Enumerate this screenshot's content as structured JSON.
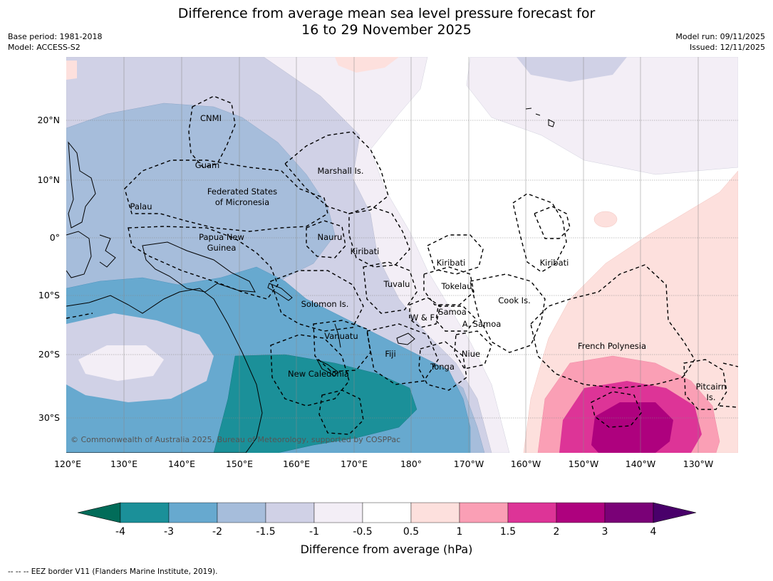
{
  "title_line1": "Difference from average mean sea level pressure forecast for",
  "title_line2": "16 to 29 November 2025",
  "meta_left": [
    "Base period: 1981-2018",
    "Model: ACCESS-S2"
  ],
  "meta_right": [
    "Model run: 09/11/2025",
    "Issued: 12/11/2025"
  ],
  "copyright": "© Commonwealth of Australia 2025, Bureau of Meteorology, supported by COSPPac",
  "lon_labels": [
    "120°E",
    "130°E",
    "140°E",
    "150°E",
    "160°E",
    "170°E",
    "180°",
    "170°W",
    "160°W",
    "150°W",
    "140°W",
    "130°W"
  ],
  "lat_labels": [
    "20°N",
    "10°N",
    "0°",
    "10°S",
    "20°S",
    "30°S"
  ],
  "regions": [
    {
      "lines": [
        "CNMI"
      ]
    },
    {
      "lines": [
        "Guam"
      ]
    },
    {
      "lines": [
        "Marshall Is."
      ]
    },
    {
      "lines": [
        "Federated States",
        "of Micronesia"
      ]
    },
    {
      "lines": [
        "Palau"
      ]
    },
    {
      "lines": [
        "Papua New",
        "Guinea"
      ]
    },
    {
      "lines": [
        "Nauru"
      ]
    },
    {
      "lines": [
        "Kiribati"
      ]
    },
    {
      "lines": [
        "Kiribati"
      ]
    },
    {
      "lines": [
        "Kiribati"
      ]
    },
    {
      "lines": [
        "Tuvalu"
      ]
    },
    {
      "lines": [
        "Tokelau"
      ]
    },
    {
      "lines": [
        "Cook Is."
      ]
    },
    {
      "lines": [
        "Solomon Is."
      ]
    },
    {
      "lines": [
        "Samoa"
      ]
    },
    {
      "lines": [
        "W & F"
      ]
    },
    {
      "lines": [
        "A. Samoa"
      ]
    },
    {
      "lines": [
        "Vanuatu"
      ]
    },
    {
      "lines": [
        "Fiji"
      ]
    },
    {
      "lines": [
        "Niue"
      ]
    },
    {
      "lines": [
        "Tonga"
      ]
    },
    {
      "lines": [
        "French Polynesia"
      ]
    },
    {
      "lines": [
        "New Caledonia"
      ]
    },
    {
      "lines": [
        "Pitcairn",
        "Is."
      ]
    }
  ],
  "colorbar": {
    "labels": [
      "-4",
      "-3",
      "-2",
      "-1.5",
      "-1",
      "-0.5",
      "0.5",
      "1",
      "1.5",
      "2",
      "3",
      "4"
    ],
    "colors": [
      "#1b9099",
      "#67a9cf",
      "#a6bddb",
      "#d0d1e6",
      "#f3eef6",
      "#ffffff",
      "#fde0dd",
      "#fa9fb5",
      "#dd3497",
      "#ae017e",
      "#7a0177"
    ],
    "under_color": "#016c59",
    "over_color": "#49006a",
    "title": "Difference from average (hPa)"
  },
  "footnote": "--  --  -- EEZ border V11 (Flanders Marine Institute, 2019)."
}
